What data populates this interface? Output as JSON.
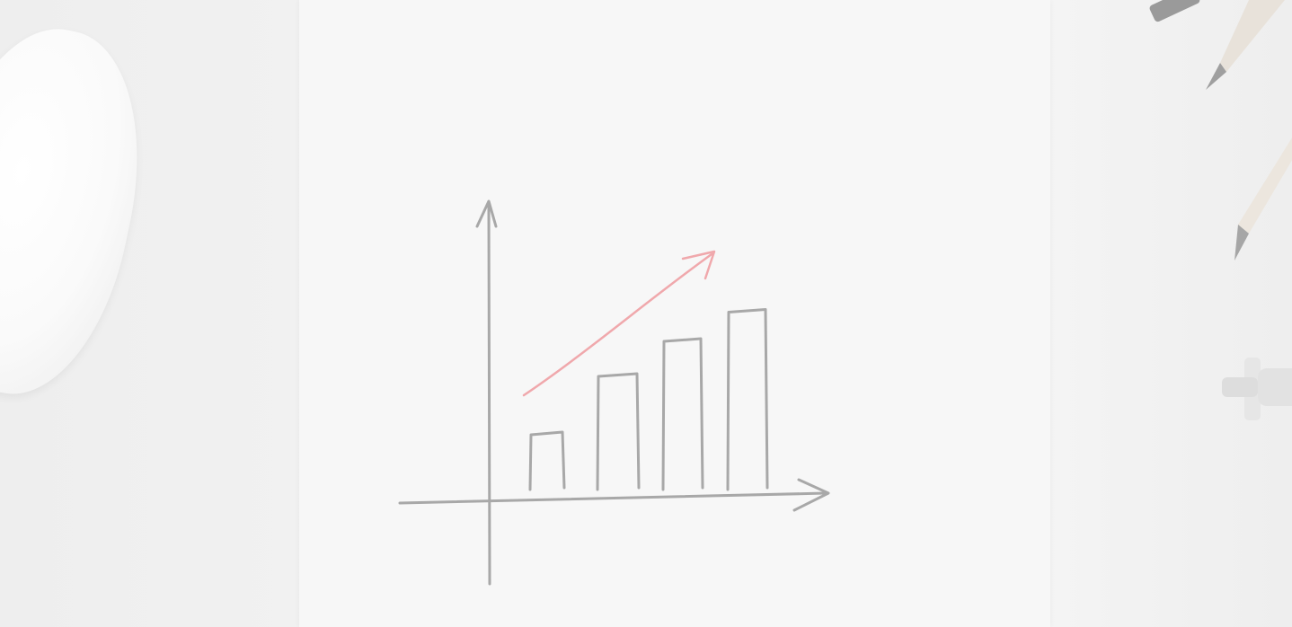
{
  "scene": {
    "description_name": "sketch-bar-chart-on-paper",
    "colors": {
      "sketch_stroke": "#a8a8a8",
      "trend_arrow": "#f0a8ac",
      "paper": "#f7f7f7",
      "desk": "#f0f0f0"
    },
    "chart_data": {
      "type": "bar",
      "categories": [
        "",
        "",
        "",
        ""
      ],
      "values": [
        1,
        2,
        2.6,
        3.1
      ],
      "ylim": [
        0,
        5
      ]
    },
    "objects": [
      "computer-mouse",
      "paper-sheet",
      "pencils",
      "push-pin"
    ]
  }
}
